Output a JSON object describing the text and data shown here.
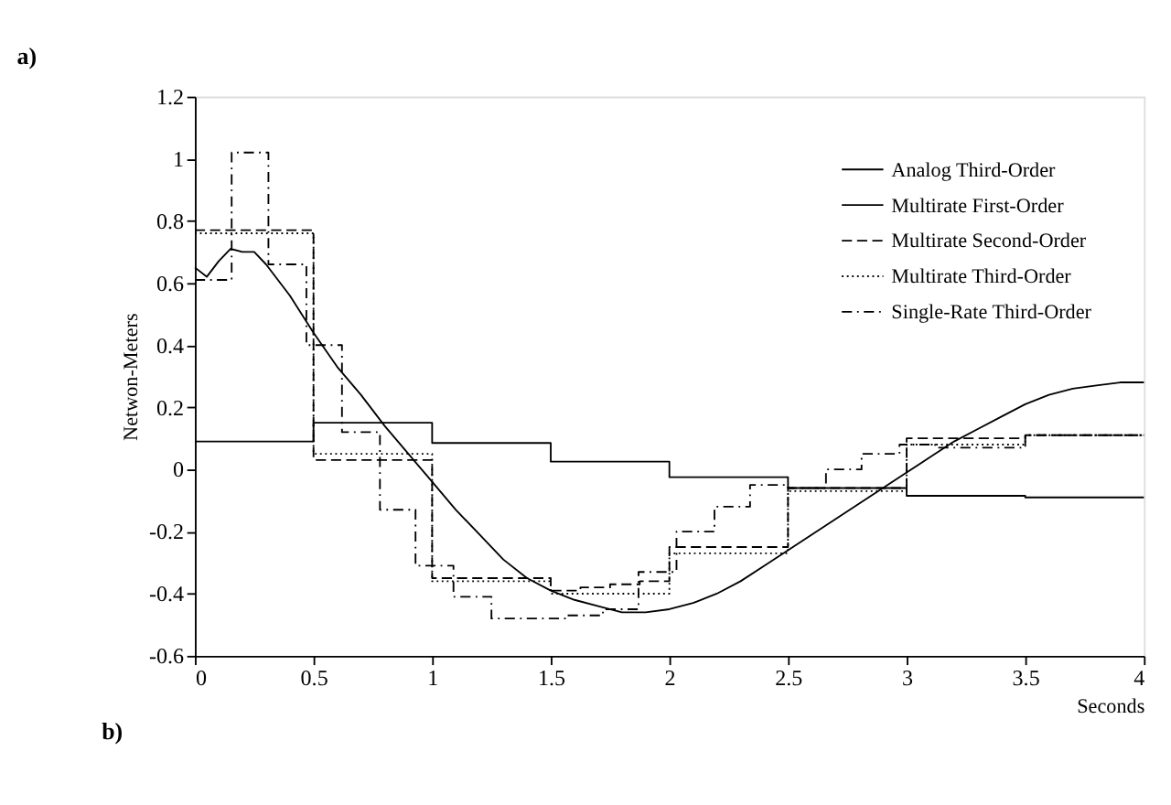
{
  "chart_data": {
    "type": "step",
    "title": "a)",
    "xlabel": "Seconds",
    "ylabel": "Netwon-Meters",
    "xlim": [
      0,
      4
    ],
    "xticks": [
      0,
      0.5,
      1,
      1.5,
      2,
      2.5,
      3,
      3.5,
      4
    ],
    "ylim": [
      -0.6,
      1.2
    ],
    "yticks": [
      -0.6,
      -0.4,
      -0.2,
      0,
      0.2,
      0.4,
      0.6,
      0.8,
      1,
      1.2
    ],
    "grid": false,
    "legend": "top right",
    "annotations": [
      "b)"
    ],
    "series": [
      {
        "name": "Analog Third-Order",
        "type": "line",
        "line_style": "solid",
        "color": "#000000",
        "x": [
          0,
          0.05,
          0.1,
          0.15,
          0.2,
          0.25,
          0.3,
          0.4,
          0.5,
          0.6,
          0.7,
          0.8,
          0.9,
          1.0,
          1.1,
          1.2,
          1.3,
          1.4,
          1.5,
          1.6,
          1.7,
          1.8,
          1.9,
          2.0,
          2.1,
          2.2,
          2.3,
          2.4,
          2.5,
          2.6,
          2.7,
          2.8,
          2.9,
          3.0,
          3.1,
          3.2,
          3.3,
          3.4,
          3.5,
          3.6,
          3.7,
          3.8,
          3.9,
          4.0
        ],
        "values": [
          0.65,
          0.62,
          0.67,
          0.71,
          0.7,
          0.7,
          0.66,
          0.56,
          0.44,
          0.33,
          0.24,
          0.14,
          0.05,
          -0.04,
          -0.13,
          -0.21,
          -0.29,
          -0.35,
          -0.39,
          -0.42,
          -0.44,
          -0.46,
          -0.46,
          -0.45,
          -0.43,
          -0.4,
          -0.36,
          -0.31,
          -0.26,
          -0.21,
          -0.16,
          -0.11,
          -0.06,
          -0.01,
          0.04,
          0.09,
          0.13,
          0.17,
          0.21,
          0.24,
          0.26,
          0.27,
          0.28,
          0.28
        ]
      },
      {
        "name": "Multirate First-Order",
        "line_style": "solid",
        "color": "#000000",
        "x": [
          0,
          0.5,
          1,
          1.5,
          2,
          2.5,
          3,
          3.5,
          4
        ],
        "values": [
          0.09,
          0.15,
          0.085,
          0.025,
          -0.025,
          -0.06,
          -0.085,
          -0.09,
          -0.09
        ]
      },
      {
        "name": "Multirate Second-Order",
        "line_style": "dashed",
        "color": "#000000",
        "x": [
          0,
          0.5,
          1,
          1.5,
          1.625,
          1.75,
          1.875,
          2,
          2.125,
          2.25,
          2.375,
          2.5,
          3,
          3.5,
          4
        ],
        "values": [
          0.77,
          0.03,
          -0.35,
          -0.39,
          -0.38,
          -0.37,
          -0.36,
          -0.25,
          -0.25,
          -0.25,
          -0.25,
          -0.06,
          0.1,
          0.11,
          0.11
        ]
      },
      {
        "name": "Multirate Third-Order",
        "line_style": "dotted",
        "color": "#000000",
        "x": [
          0,
          0.5,
          1,
          1.5,
          2,
          2.5,
          3,
          3.5,
          4
        ],
        "values": [
          0.76,
          0.05,
          -0.36,
          -0.4,
          -0.27,
          -0.07,
          0.08,
          0.11,
          0.11
        ]
      },
      {
        "name": "Single-Rate Third-Order",
        "line_style": "dashdot",
        "color": "#000000",
        "x": [
          0,
          0.155,
          0.31,
          0.47,
          0.62,
          0.78,
          0.93,
          1.09,
          1.25,
          1.41,
          1.56,
          1.72,
          1.87,
          2.03,
          2.19,
          2.34,
          2.5,
          2.66,
          2.81,
          2.97,
          3.12,
          3.5,
          4
        ],
        "values": [
          0.61,
          1.02,
          0.66,
          0.4,
          0.12,
          -0.13,
          -0.31,
          -0.41,
          -0.48,
          -0.48,
          -0.47,
          -0.45,
          -0.33,
          -0.2,
          -0.12,
          -0.05,
          -0.06,
          0.0,
          0.05,
          0.08,
          0.07,
          0.11,
          0.11
        ]
      }
    ]
  }
}
